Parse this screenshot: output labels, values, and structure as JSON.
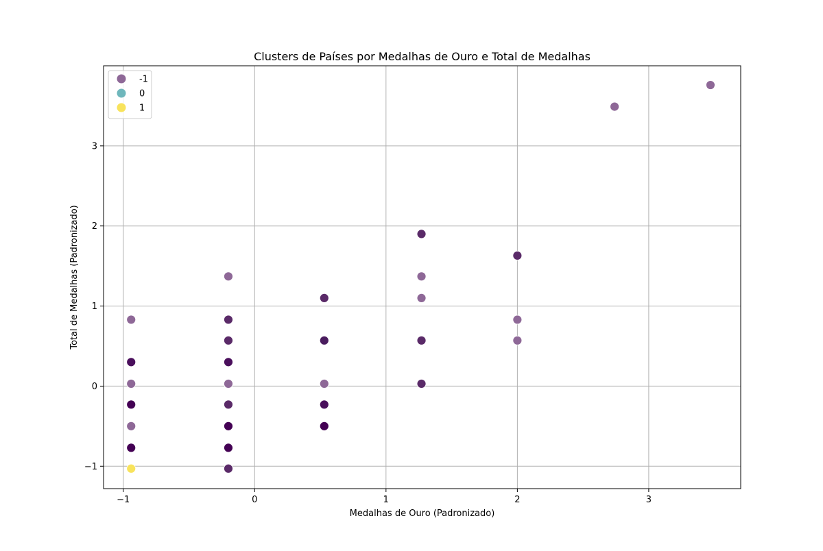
{
  "chart_data": {
    "type": "scatter",
    "title": "Clusters de Países por Medalhas de Ouro e Total de Medalhas",
    "xlabel": "Medalhas de Ouro (Padronizado)",
    "ylabel": "Total de Medalhas (Padronizado)",
    "xlim": [
      -1.15,
      3.7
    ],
    "ylim": [
      -1.28,
      4.0
    ],
    "xticks": [
      -1,
      0,
      1,
      2,
      3
    ],
    "yticks": [
      -1,
      0,
      1,
      2,
      3
    ],
    "xtick_labels": [
      "−1",
      "0",
      "1",
      "2",
      "3"
    ],
    "ytick_labels": [
      "−1",
      "0",
      "1",
      "2",
      "3"
    ],
    "grid": true,
    "legend_position": "upper-left",
    "legend": [
      {
        "label": "-1",
        "color": "#8e6897"
      },
      {
        "label": "0",
        "color": "#6fb7bc"
      },
      {
        "label": "1",
        "color": "#f8e35c"
      }
    ],
    "points": [
      {
        "x": 3.47,
        "y": 3.76,
        "cluster": -1,
        "color": "#8e6897"
      },
      {
        "x": 2.74,
        "y": 3.49,
        "cluster": -1,
        "color": "#8e6897"
      },
      {
        "x": 1.27,
        "y": 1.9,
        "cluster": -1,
        "color": "#5a2a68"
      },
      {
        "x": 2.0,
        "y": 1.63,
        "cluster": -1,
        "color": "#5a2a68"
      },
      {
        "x": 1.27,
        "y": 1.37,
        "cluster": -1,
        "color": "#8e6897"
      },
      {
        "x": -0.2,
        "y": 1.37,
        "cluster": -1,
        "color": "#8e6897"
      },
      {
        "x": 0.53,
        "y": 1.1,
        "cluster": -1,
        "color": "#5a2a68"
      },
      {
        "x": 1.27,
        "y": 1.1,
        "cluster": -1,
        "color": "#8e6897"
      },
      {
        "x": -0.94,
        "y": 0.83,
        "cluster": -1,
        "color": "#8e6897"
      },
      {
        "x": -0.2,
        "y": 0.83,
        "cluster": -1,
        "color": "#5a2a68"
      },
      {
        "x": 2.0,
        "y": 0.83,
        "cluster": -1,
        "color": "#8e6897"
      },
      {
        "x": -0.2,
        "y": 0.57,
        "cluster": -1,
        "color": "#5a2a68"
      },
      {
        "x": 0.53,
        "y": 0.57,
        "cluster": -1,
        "color": "#4a1c5e"
      },
      {
        "x": 1.27,
        "y": 0.57,
        "cluster": -1,
        "color": "#5a2a68"
      },
      {
        "x": 2.0,
        "y": 0.57,
        "cluster": -1,
        "color": "#8e6897"
      },
      {
        "x": -0.94,
        "y": 0.3,
        "cluster": -1,
        "color": "#4a0f5c"
      },
      {
        "x": -0.2,
        "y": 0.3,
        "cluster": -1,
        "color": "#4a0f5c"
      },
      {
        "x": -0.94,
        "y": 0.03,
        "cluster": -1,
        "color": "#8e6897"
      },
      {
        "x": -0.2,
        "y": 0.03,
        "cluster": -1,
        "color": "#8e6897"
      },
      {
        "x": 0.53,
        "y": 0.03,
        "cluster": -1,
        "color": "#8e6897"
      },
      {
        "x": 1.27,
        "y": 0.03,
        "cluster": -1,
        "color": "#5a2a68"
      },
      {
        "x": -0.94,
        "y": -0.23,
        "cluster": -1,
        "color": "#440154"
      },
      {
        "x": -0.2,
        "y": -0.23,
        "cluster": -1,
        "color": "#5a2a68"
      },
      {
        "x": 0.53,
        "y": -0.23,
        "cluster": -1,
        "color": "#4a0f5c"
      },
      {
        "x": -0.94,
        "y": -0.5,
        "cluster": -1,
        "color": "#8e6897"
      },
      {
        "x": -0.2,
        "y": -0.5,
        "cluster": -1,
        "color": "#440154"
      },
      {
        "x": 0.53,
        "y": -0.5,
        "cluster": -1,
        "color": "#440154"
      },
      {
        "x": -0.94,
        "y": -0.77,
        "cluster": -1,
        "color": "#440154"
      },
      {
        "x": -0.2,
        "y": -0.77,
        "cluster": -1,
        "color": "#440154"
      },
      {
        "x": -0.2,
        "y": -1.03,
        "cluster": -1,
        "color": "#5a2a68"
      },
      {
        "x": -0.94,
        "y": -1.03,
        "cluster": 1,
        "color": "#f8e35c"
      }
    ]
  }
}
